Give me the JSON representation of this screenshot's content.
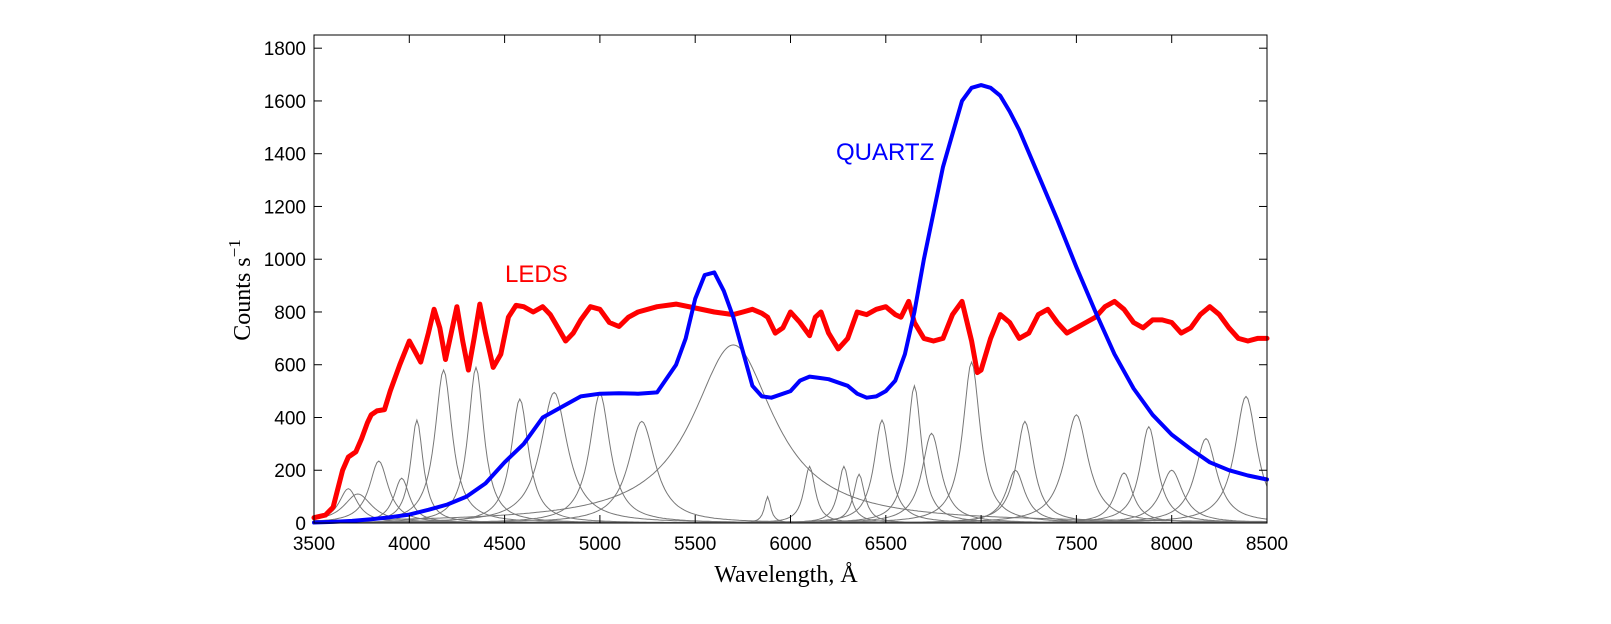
{
  "chart_data": {
    "type": "line",
    "title": "",
    "xlabel": "Wavelength, Å",
    "ylabel": "Counts s",
    "ylabel_exponent": "−1",
    "xlim": [
      3500,
      8500
    ],
    "ylim": [
      0,
      1850
    ],
    "x_ticks": [
      3500,
      4000,
      4500,
      5000,
      5500,
      6000,
      6500,
      7000,
      7500,
      8000,
      8500
    ],
    "y_ticks": [
      0,
      200,
      400,
      600,
      800,
      1000,
      1200,
      1400,
      1600,
      1800
    ],
    "grid": false,
    "series": [
      {
        "name": "LEDS",
        "color": "#ff0000",
        "x": [
          3500,
          3560,
          3600,
          3650,
          3680,
          3720,
          3750,
          3780,
          3800,
          3830,
          3870,
          3900,
          3950,
          4000,
          4030,
          4060,
          4100,
          4130,
          4160,
          4190,
          4220,
          4250,
          4280,
          4310,
          4340,
          4370,
          4400,
          4440,
          4480,
          4520,
          4560,
          4600,
          4650,
          4700,
          4740,
          4780,
          4820,
          4860,
          4900,
          4950,
          5000,
          5050,
          5100,
          5150,
          5200,
          5300,
          5400,
          5500,
          5600,
          5700,
          5750,
          5800,
          5850,
          5880,
          5920,
          5960,
          6000,
          6050,
          6100,
          6130,
          6160,
          6200,
          6250,
          6300,
          6350,
          6400,
          6450,
          6500,
          6550,
          6580,
          6620,
          6650,
          6700,
          6750,
          6800,
          6850,
          6900,
          6950,
          6980,
          7000,
          7050,
          7100,
          7150,
          7200,
          7250,
          7300,
          7350,
          7400,
          7450,
          7500,
          7550,
          7600,
          7650,
          7700,
          7750,
          7800,
          7850,
          7900,
          7950,
          8000,
          8050,
          8100,
          8150,
          8200,
          8250,
          8300,
          8350,
          8400,
          8450,
          8500
        ],
        "y": [
          20,
          30,
          60,
          200,
          250,
          270,
          320,
          380,
          410,
          425,
          430,
          500,
          600,
          690,
          650,
          610,
          720,
          810,
          740,
          620,
          720,
          820,
          690,
          580,
          700,
          830,
          720,
          590,
          640,
          780,
          825,
          820,
          800,
          820,
          790,
          740,
          690,
          720,
          770,
          820,
          810,
          760,
          745,
          780,
          800,
          820,
          830,
          815,
          800,
          790,
          800,
          810,
          795,
          780,
          720,
          740,
          800,
          760,
          710,
          780,
          800,
          720,
          660,
          700,
          800,
          790,
          810,
          820,
          790,
          780,
          840,
          760,
          700,
          690,
          700,
          790,
          840,
          690,
          570,
          580,
          700,
          790,
          760,
          700,
          720,
          790,
          810,
          760,
          720,
          740,
          760,
          780,
          820,
          840,
          810,
          760,
          740,
          770,
          770,
          760,
          720,
          740,
          790,
          820,
          790,
          740,
          700,
          690,
          700,
          700
        ],
        "label": "LEDS"
      },
      {
        "name": "QUARTZ",
        "color": "#0000ff",
        "x": [
          3500,
          3600,
          3700,
          3800,
          3900,
          4000,
          4100,
          4200,
          4300,
          4400,
          4500,
          4600,
          4700,
          4800,
          4900,
          5000,
          5100,
          5200,
          5300,
          5400,
          5450,
          5500,
          5550,
          5600,
          5650,
          5700,
          5750,
          5800,
          5850,
          5900,
          6000,
          6050,
          6100,
          6150,
          6200,
          6300,
          6350,
          6400,
          6450,
          6500,
          6550,
          6600,
          6650,
          6700,
          6800,
          6900,
          6950,
          7000,
          7050,
          7100,
          7150,
          7200,
          7300,
          7400,
          7500,
          7600,
          7700,
          7800,
          7900,
          8000,
          8100,
          8200,
          8300,
          8400,
          8500
        ],
        "y": [
          2,
          4,
          8,
          14,
          22,
          32,
          50,
          70,
          100,
          150,
          230,
          300,
          400,
          440,
          480,
          490,
          492,
          490,
          495,
          600,
          700,
          850,
          940,
          950,
          880,
          780,
          650,
          520,
          480,
          475,
          500,
          540,
          555,
          550,
          545,
          520,
          490,
          475,
          480,
          500,
          540,
          640,
          800,
          1000,
          1350,
          1600,
          1650,
          1660,
          1650,
          1620,
          1560,
          1490,
          1320,
          1150,
          970,
          800,
          640,
          510,
          410,
          335,
          280,
          230,
          200,
          180,
          165
        ],
        "label": "QUARTZ"
      }
    ],
    "component_peaks": [
      {
        "center": 3680,
        "height": 130,
        "width": 60
      },
      {
        "center": 3730,
        "height": 110,
        "width": 90
      },
      {
        "center": 3840,
        "height": 235,
        "width": 60
      },
      {
        "center": 3960,
        "height": 170,
        "width": 50
      },
      {
        "center": 4040,
        "height": 390,
        "width": 40
      },
      {
        "center": 4180,
        "height": 580,
        "width": 55
      },
      {
        "center": 4350,
        "height": 590,
        "width": 50
      },
      {
        "center": 4580,
        "height": 470,
        "width": 55
      },
      {
        "center": 4760,
        "height": 495,
        "width": 85
      },
      {
        "center": 5000,
        "height": 490,
        "width": 65
      },
      {
        "center": 5220,
        "height": 385,
        "width": 85
      },
      {
        "center": 5700,
        "height": 675,
        "width": 260
      },
      {
        "center": 5880,
        "height": 100,
        "width": 20
      },
      {
        "center": 6100,
        "height": 215,
        "width": 35
      },
      {
        "center": 6280,
        "height": 215,
        "width": 35
      },
      {
        "center": 6360,
        "height": 185,
        "width": 35
      },
      {
        "center": 6480,
        "height": 390,
        "width": 50
      },
      {
        "center": 6650,
        "height": 520,
        "width": 45
      },
      {
        "center": 6740,
        "height": 340,
        "width": 60
      },
      {
        "center": 6950,
        "height": 610,
        "width": 55
      },
      {
        "center": 7180,
        "height": 200,
        "width": 60
      },
      {
        "center": 7230,
        "height": 385,
        "width": 55
      },
      {
        "center": 7500,
        "height": 410,
        "width": 75
      },
      {
        "center": 7750,
        "height": 190,
        "width": 55
      },
      {
        "center": 7880,
        "height": 365,
        "width": 55
      },
      {
        "center": 8000,
        "height": 200,
        "width": 70
      },
      {
        "center": 8180,
        "height": 320,
        "width": 70
      },
      {
        "center": 8390,
        "height": 480,
        "width": 70
      }
    ],
    "component_color": "#777777",
    "annotations": [
      "LEDS",
      "QUARTZ"
    ]
  }
}
